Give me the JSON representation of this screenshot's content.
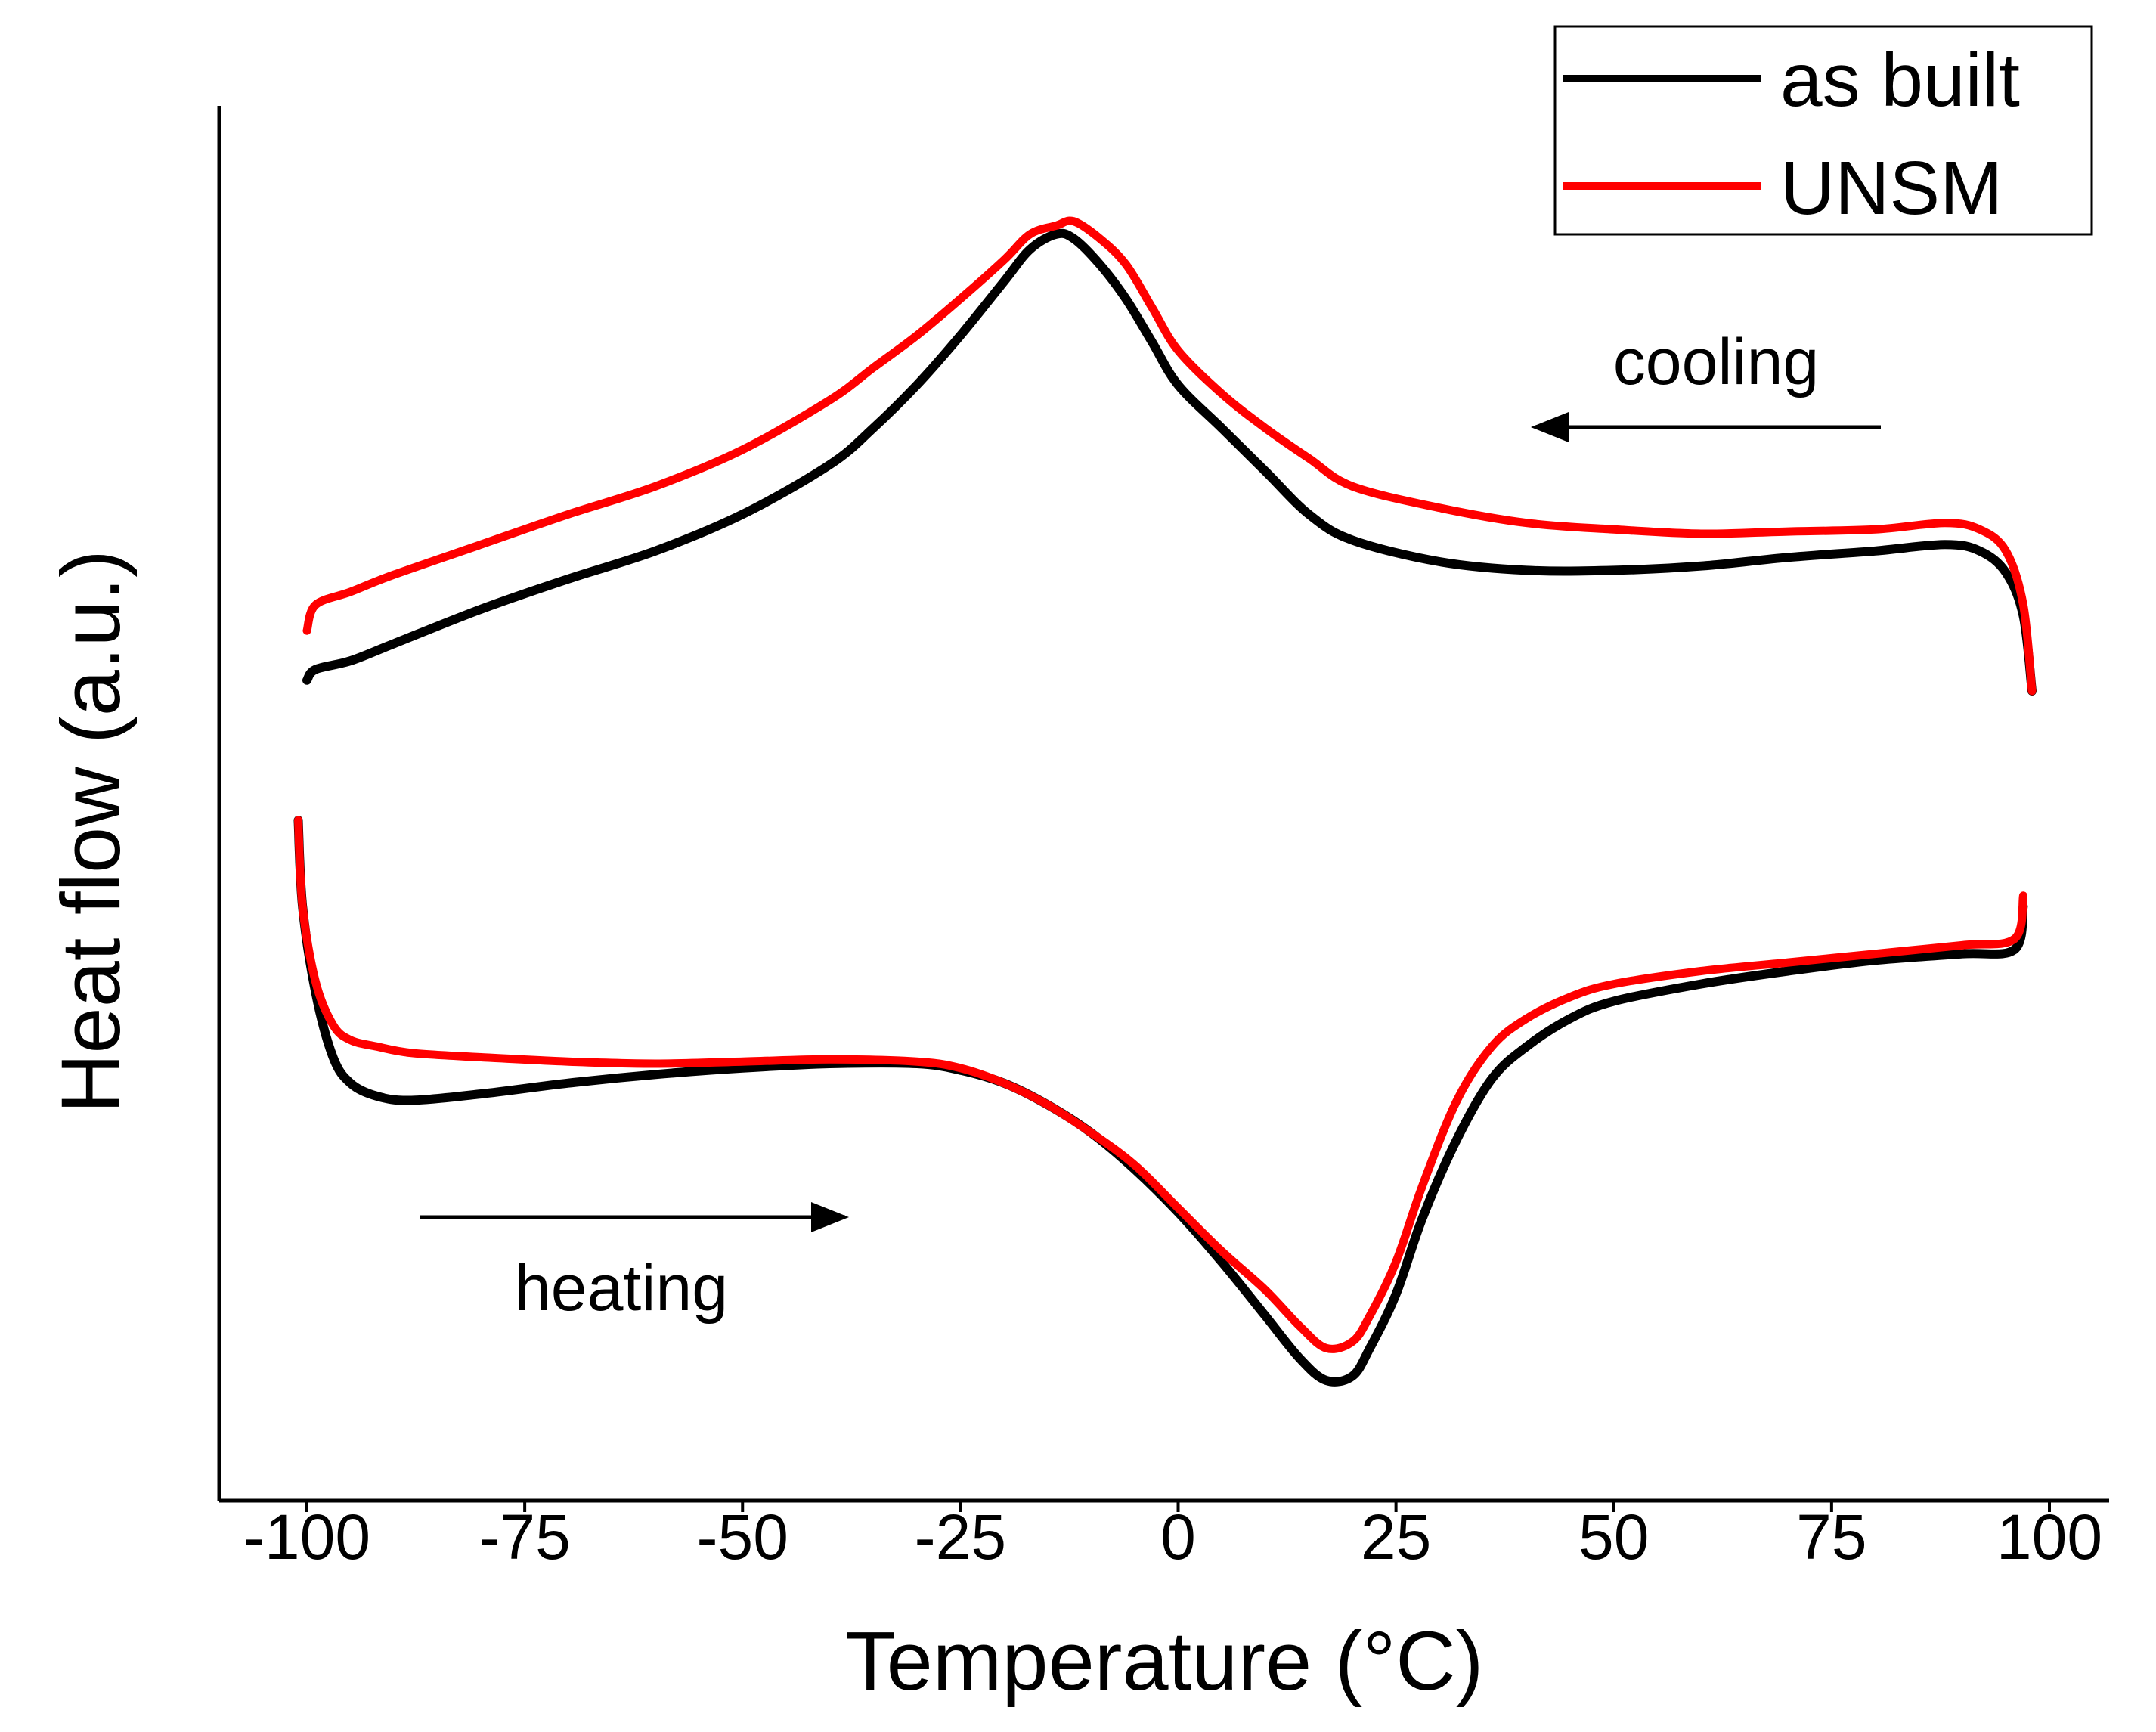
{
  "chart_data": {
    "type": "line",
    "title": "",
    "xlabel": "Temperature (°C)",
    "ylabel": "Heat flow (a.u.)",
    "xlim": [
      -110,
      110
    ],
    "ylim": [
      -2.7,
      2.7
    ],
    "xticks": [
      -100,
      -75,
      -50,
      -25,
      0,
      25,
      50,
      75,
      100
    ],
    "xtick_labels": [
      "-100",
      "-75",
      "-50",
      "-25",
      "0",
      "25",
      "50",
      "75",
      "100"
    ],
    "y_ticks_shown": false,
    "legend_position": "top-right",
    "series": [
      {
        "name": "as built",
        "color": "#000000",
        "segments": [
          {
            "label": "cooling",
            "x": [
              98,
              97,
              95,
              92,
              88,
              80,
              70,
              60,
              50,
              40,
              30,
              20,
              15,
              10,
              5,
              0,
              -3,
              -6,
              -9,
              -12,
              -14,
              -17,
              -20,
              -25,
              -30,
              -35,
              -40,
              -50,
              -60,
              -70,
              -80,
              -90,
              -95,
              -99,
              -100
            ],
            "y": [
              0.6,
              0.95,
              1.15,
              1.25,
              1.28,
              1.25,
              1.22,
              1.18,
              1.16,
              1.16,
              1.2,
              1.3,
              1.42,
              1.62,
              1.82,
              2.02,
              2.22,
              2.42,
              2.58,
              2.7,
              2.72,
              2.65,
              2.5,
              2.25,
              2.02,
              1.82,
              1.65,
              1.42,
              1.25,
              1.12,
              0.98,
              0.82,
              0.74,
              0.7,
              0.65
            ]
          },
          {
            "label": "heating",
            "x": [
              -101,
              -100.5,
              -99,
              -97,
              -95,
              -92,
              -88,
              -80,
              -70,
              -60,
              -50,
              -40,
              -30,
              -25,
              -20,
              -15,
              -10,
              -5,
              0,
              5,
              10,
              14,
              17,
              20,
              22,
              25,
              28,
              32,
              36,
              40,
              45,
              50,
              60,
              70,
              80,
              90,
              96,
              97
            ],
            "y": [
              0.0,
              -0.4,
              -0.8,
              -1.1,
              -1.22,
              -1.28,
              -1.3,
              -1.27,
              -1.22,
              -1.18,
              -1.15,
              -1.13,
              -1.13,
              -1.16,
              -1.22,
              -1.32,
              -1.45,
              -1.62,
              -1.82,
              -2.05,
              -2.3,
              -2.5,
              -2.6,
              -2.58,
              -2.45,
              -2.2,
              -1.85,
              -1.48,
              -1.2,
              -1.05,
              -0.92,
              -0.84,
              -0.76,
              -0.7,
              -0.65,
              -0.62,
              -0.6,
              -0.4
            ]
          }
        ]
      },
      {
        "name": "UNSM",
        "color": "#ff0000",
        "segments": [
          {
            "label": "cooling",
            "x": [
              98,
              97,
              95,
              92,
              88,
              80,
              70,
              60,
              50,
              40,
              30,
              20,
              15,
              10,
              5,
              0,
              -3,
              -6,
              -9,
              -12,
              -14,
              -17,
              -20,
              -25,
              -30,
              -35,
              -40,
              -50,
              -60,
              -70,
              -80,
              -90,
              -95,
              -99,
              -100
            ],
            "y": [
              0.6,
              1.0,
              1.25,
              1.35,
              1.38,
              1.35,
              1.34,
              1.33,
              1.35,
              1.38,
              1.45,
              1.55,
              1.68,
              1.82,
              1.98,
              2.18,
              2.38,
              2.58,
              2.7,
              2.78,
              2.76,
              2.72,
              2.6,
              2.42,
              2.25,
              2.1,
              1.95,
              1.72,
              1.55,
              1.42,
              1.28,
              1.14,
              1.06,
              1.0,
              0.88
            ]
          },
          {
            "label": "heating",
            "x": [
              -101,
              -100.5,
              -99,
              -97,
              -95,
              -92,
              -88,
              -80,
              -70,
              -60,
              -50,
              -40,
              -30,
              -25,
              -20,
              -15,
              -10,
              -5,
              0,
              5,
              10,
              14,
              17,
              20,
              22,
              25,
              28,
              32,
              36,
              40,
              45,
              50,
              60,
              70,
              80,
              90,
              96,
              97
            ],
            "y": [
              0.0,
              -0.4,
              -0.75,
              -0.95,
              -1.02,
              -1.05,
              -1.08,
              -1.1,
              -1.12,
              -1.13,
              -1.12,
              -1.11,
              -1.12,
              -1.15,
              -1.22,
              -1.32,
              -1.45,
              -1.6,
              -1.8,
              -2.0,
              -2.18,
              -2.35,
              -2.45,
              -2.42,
              -2.3,
              -2.05,
              -1.7,
              -1.3,
              -1.05,
              -0.92,
              -0.82,
              -0.76,
              -0.7,
              -0.66,
              -0.62,
              -0.58,
              -0.55,
              -0.35
            ]
          }
        ]
      }
    ],
    "annotations": [
      {
        "text": "cooling",
        "arrow_direction": "left"
      },
      {
        "text": "heating",
        "arrow_direction": "right"
      }
    ]
  }
}
